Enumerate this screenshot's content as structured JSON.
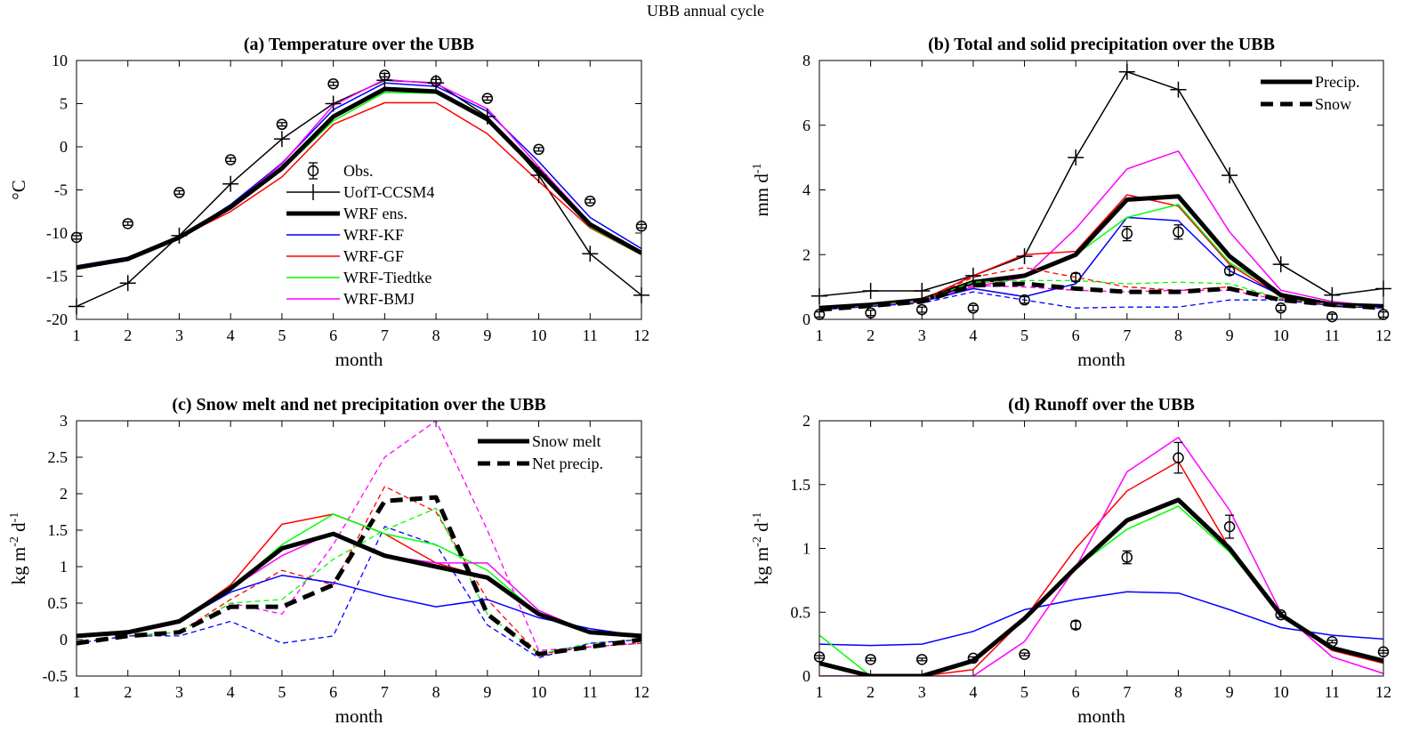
{
  "figure_title": "UBB annual cycle",
  "colors": {
    "obs": "#000000",
    "ccsm": "#000000",
    "ens": "#000000",
    "kf": "#0000ff",
    "gf": "#ff0000",
    "tiedtke": "#00ff00",
    "bmj": "#ff00ff"
  },
  "chart_data": [
    {
      "id": "a",
      "type": "line",
      "title": "(a) Temperature over the UBB",
      "xlabel": "month",
      "ylabel": "°C",
      "xlim": [
        1,
        12
      ],
      "ylim": [
        -20,
        10
      ],
      "xticks": [
        1,
        2,
        3,
        4,
        5,
        6,
        7,
        8,
        9,
        10,
        11,
        12
      ],
      "yticks": [
        -20,
        -15,
        -10,
        -5,
        0,
        5,
        10
      ],
      "legend_position": "center",
      "legend": [
        "Obs.",
        "UofT-CCSM4",
        "WRF ens.",
        "WRF-KF",
        "WRF-GF",
        "WRF-Tiedtke",
        "WRF-BMJ"
      ],
      "obs": {
        "name": "Obs.",
        "values": [
          -10.5,
          -8.9,
          -5.3,
          -1.5,
          2.6,
          7.3,
          8.3,
          7.6,
          5.6,
          -0.3,
          -6.3,
          -9.2
        ],
        "err": [
          0.2,
          0.2,
          0.2,
          0.2,
          0.2,
          0.2,
          0.2,
          0.2,
          0.2,
          0.2,
          0.2,
          0.2
        ]
      },
      "series": [
        {
          "name": "UofT-CCSM4",
          "color": "ccsm",
          "width": 1.5,
          "dash": "",
          "marker": "plus",
          "values": [
            -18.5,
            -15.8,
            -10.3,
            -4.3,
            0.9,
            5.0,
            7.7,
            7.4,
            3.5,
            -3.3,
            -12.4,
            -17.2
          ]
        },
        {
          "name": "WRF-KF",
          "color": "kf",
          "width": 1.5,
          "dash": "",
          "values": [
            -13.8,
            -12.8,
            -10.5,
            -6.7,
            -1.9,
            4.3,
            7.4,
            7.0,
            4.1,
            -1.7,
            -8.2,
            -11.8
          ]
        },
        {
          "name": "WRF-GF",
          "color": "gf",
          "width": 1.5,
          "dash": "",
          "values": [
            -14.2,
            -13.1,
            -10.5,
            -7.5,
            -3.5,
            2.6,
            5.1,
            5.1,
            1.5,
            -4.0,
            -9.4,
            -12.5
          ]
        },
        {
          "name": "WRF-Tiedtke",
          "color": "tiedtke",
          "width": 1.5,
          "dash": "",
          "values": [
            -13.9,
            -12.9,
            -10.6,
            -7.0,
            -2.7,
            3.0,
            6.3,
            6.2,
            3.0,
            -3.0,
            -9.3,
            -12.5
          ]
        },
        {
          "name": "WRF-BMJ",
          "color": "bmj",
          "width": 1.5,
          "dash": "",
          "values": [
            -14.0,
            -13.0,
            -10.4,
            -6.9,
            -2.0,
            4.8,
            7.8,
            7.3,
            4.4,
            -2.3,
            -8.8,
            -12.2
          ]
        },
        {
          "name": "WRF ens.",
          "color": "ens",
          "width": 5,
          "dash": "",
          "values": [
            -14.0,
            -13.0,
            -10.5,
            -7.0,
            -2.5,
            3.5,
            6.7,
            6.4,
            3.2,
            -2.8,
            -9.0,
            -12.3
          ]
        }
      ]
    },
    {
      "id": "b",
      "type": "line",
      "title": "(b) Total and solid precipitation over the UBB",
      "xlabel": "month",
      "ylabel": "mm d",
      "ylabel_sup": "-1",
      "xlim": [
        1,
        12
      ],
      "ylim": [
        0,
        8
      ],
      "xticks": [
        1,
        2,
        3,
        4,
        5,
        6,
        7,
        8,
        9,
        10,
        11,
        12
      ],
      "yticks": [
        0,
        2,
        4,
        6,
        8
      ],
      "legend_position": "top-right",
      "legend": [
        "Precip.",
        "Snow"
      ],
      "obs": {
        "name": "Obs.",
        "values": [
          0.15,
          0.2,
          0.3,
          0.35,
          0.6,
          1.3,
          2.65,
          2.7,
          1.5,
          0.35,
          0.08,
          0.15
        ],
        "err": [
          0.08,
          0.08,
          0.08,
          0.08,
          0.1,
          0.12,
          0.22,
          0.22,
          0.12,
          0.08,
          0.08,
          0.08
        ]
      },
      "series": [
        {
          "name": "UofT-CCSM4",
          "color": "ccsm",
          "width": 1.5,
          "dash": "",
          "marker": "plus",
          "values": [
            0.72,
            0.88,
            0.88,
            1.35,
            1.95,
            5.0,
            7.65,
            7.1,
            4.45,
            1.7,
            0.75,
            0.95
          ]
        },
        {
          "name": "WRF-BMJ",
          "color": "bmj",
          "width": 1.5,
          "dash": "",
          "values": [
            0.35,
            0.45,
            0.6,
            1.0,
            1.3,
            2.8,
            4.65,
            5.2,
            2.7,
            0.9,
            0.55,
            0.4
          ]
        },
        {
          "name": "WRF-GF",
          "color": "gf",
          "width": 1.5,
          "dash": "",
          "values": [
            0.35,
            0.45,
            0.6,
            1.35,
            2.0,
            2.1,
            3.85,
            3.5,
            1.7,
            0.7,
            0.45,
            0.4
          ]
        },
        {
          "name": "WRF-KF",
          "color": "kf",
          "width": 1.5,
          "dash": "",
          "values": [
            0.35,
            0.45,
            0.55,
            0.95,
            0.7,
            1.1,
            3.15,
            3.05,
            1.5,
            0.75,
            0.5,
            0.4
          ]
        },
        {
          "name": "WRF-Tiedtke",
          "color": "tiedtke",
          "width": 1.5,
          "dash": "",
          "values": [
            0.35,
            0.48,
            0.6,
            1.2,
            1.35,
            2.0,
            3.15,
            3.55,
            1.75,
            0.8,
            0.5,
            0.45
          ]
        },
        {
          "name": "WRF ens. Precip.",
          "color": "ens",
          "width": 5,
          "dash": "",
          "values": [
            0.35,
            0.45,
            0.6,
            1.15,
            1.35,
            2.0,
            3.7,
            3.8,
            1.95,
            0.75,
            0.45,
            0.4
          ]
        },
        {
          "name": "WRF-GF Snow",
          "color": "gf",
          "width": 1.3,
          "dash": "6,4",
          "values": [
            0.3,
            0.42,
            0.6,
            1.3,
            1.6,
            1.3,
            1.0,
            0.9,
            1.0,
            0.65,
            0.45,
            0.35
          ]
        },
        {
          "name": "WRF-Tiedtke Snow",
          "color": "tiedtke",
          "width": 1.3,
          "dash": "6,4",
          "values": [
            0.3,
            0.42,
            0.58,
            1.15,
            1.2,
            1.2,
            1.1,
            1.15,
            1.1,
            0.65,
            0.45,
            0.35
          ]
        },
        {
          "name": "WRF-BMJ Snow",
          "color": "bmj",
          "width": 1.3,
          "dash": "6,4",
          "values": [
            0.3,
            0.4,
            0.55,
            1.05,
            1.0,
            0.9,
            0.85,
            0.9,
            0.9,
            0.6,
            0.45,
            0.35
          ]
        },
        {
          "name": "WRF-KF Snow",
          "color": "kf",
          "width": 1.3,
          "dash": "6,4",
          "values": [
            0.3,
            0.4,
            0.5,
            0.85,
            0.6,
            0.35,
            0.38,
            0.38,
            0.6,
            0.6,
            0.42,
            0.35
          ]
        },
        {
          "name": "WRF ens. Snow",
          "color": "ens",
          "width": 5,
          "dash": "14,8",
          "values": [
            0.3,
            0.42,
            0.55,
            1.05,
            1.1,
            0.95,
            0.85,
            0.85,
            0.95,
            0.6,
            0.45,
            0.35
          ]
        }
      ]
    },
    {
      "id": "c",
      "type": "line",
      "title": "(c) Snow melt and net precipitation over the UBB",
      "xlabel": "month",
      "ylabel": "kg m",
      "ylabel_sup": "-2",
      "ylabel_mid": " d",
      "ylabel_sup2": "-1",
      "xlim": [
        1,
        12
      ],
      "ylim": [
        -0.5,
        3
      ],
      "xticks": [
        1,
        2,
        3,
        4,
        5,
        6,
        7,
        8,
        9,
        10,
        11,
        12
      ],
      "yticks": [
        -0.5,
        0,
        0.5,
        1,
        1.5,
        2,
        2.5,
        3
      ],
      "legend_position": "top-right",
      "legend": [
        "Snow melt",
        "Net precip."
      ],
      "series": [
        {
          "name": "WRF-BMJ Net",
          "color": "bmj",
          "width": 1.3,
          "dash": "6,4",
          "values": [
            -0.05,
            0.05,
            0.1,
            0.5,
            0.35,
            1.3,
            2.5,
            3.0,
            1.5,
            -0.15,
            -0.1,
            -0.05
          ]
        },
        {
          "name": "WRF-GF Net",
          "color": "gf",
          "width": 1.3,
          "dash": "6,4",
          "values": [
            -0.05,
            0.05,
            0.1,
            0.55,
            0.95,
            0.75,
            2.1,
            1.75,
            0.55,
            -0.2,
            -0.1,
            -0.05
          ]
        },
        {
          "name": "WRF-Tiedtke Net",
          "color": "tiedtke",
          "width": 1.3,
          "dash": "6,4",
          "values": [
            -0.05,
            0.05,
            0.1,
            0.5,
            0.55,
            1.1,
            1.5,
            1.8,
            0.35,
            -0.2,
            -0.05,
            0.0
          ]
        },
        {
          "name": "WRF-KF Net",
          "color": "kf",
          "width": 1.3,
          "dash": "6,4",
          "values": [
            -0.05,
            0.05,
            0.05,
            0.25,
            -0.05,
            0.05,
            1.55,
            1.3,
            0.2,
            -0.25,
            -0.05,
            0.0
          ]
        },
        {
          "name": "WRF ens. Net precip.",
          "color": "ens",
          "width": 5,
          "dash": "14,8",
          "values": [
            -0.05,
            0.05,
            0.1,
            0.45,
            0.45,
            0.75,
            1.9,
            1.95,
            0.35,
            -0.2,
            -0.1,
            0.0
          ]
        },
        {
          "name": "WRF-KF Melt",
          "color": "kf",
          "width": 1.5,
          "dash": "",
          "values": [
            0.05,
            0.1,
            0.25,
            0.65,
            0.88,
            0.78,
            0.6,
            0.45,
            0.55,
            0.3,
            0.15,
            0.05
          ]
        },
        {
          "name": "WRF-GF Melt",
          "color": "gf",
          "width": 1.5,
          "dash": "",
          "values": [
            0.05,
            0.1,
            0.25,
            0.75,
            1.58,
            1.72,
            1.45,
            1.05,
            0.85,
            0.35,
            0.1,
            0.05
          ]
        },
        {
          "name": "WRF-Tiedtke Melt",
          "color": "tiedtke",
          "width": 1.5,
          "dash": "",
          "values": [
            0.05,
            0.1,
            0.25,
            0.7,
            1.3,
            1.72,
            1.45,
            1.3,
            0.95,
            0.35,
            0.1,
            0.05
          ]
        },
        {
          "name": "WRF-BMJ Melt",
          "color": "bmj",
          "width": 1.5,
          "dash": "",
          "values": [
            0.05,
            0.1,
            0.25,
            0.7,
            1.15,
            1.47,
            1.15,
            1.05,
            1.05,
            0.4,
            0.1,
            0.05
          ]
        },
        {
          "name": "WRF ens. Snow melt",
          "color": "ens",
          "width": 5,
          "dash": "",
          "values": [
            0.05,
            0.1,
            0.25,
            0.7,
            1.25,
            1.45,
            1.15,
            1.0,
            0.85,
            0.35,
            0.1,
            0.05
          ]
        }
      ]
    },
    {
      "id": "d",
      "type": "line",
      "title": "(d) Runoff over the UBB",
      "xlabel": "month",
      "ylabel": "kg m",
      "ylabel_sup": "-2",
      "ylabel_mid": " d",
      "ylabel_sup2": "-1",
      "xlim": [
        1,
        12
      ],
      "ylim": [
        0,
        2
      ],
      "xticks": [
        1,
        2,
        3,
        4,
        5,
        6,
        7,
        8,
        9,
        10,
        11,
        12
      ],
      "yticks": [
        0,
        0.5,
        1,
        1.5,
        2
      ],
      "obs": {
        "name": "Obs.",
        "values": [
          0.15,
          0.13,
          0.13,
          0.14,
          0.17,
          0.4,
          0.93,
          1.71,
          1.17,
          0.48,
          0.27,
          0.19
        ],
        "err": [
          0.01,
          0.01,
          0.01,
          0.01,
          0.01,
          0.03,
          0.05,
          0.12,
          0.09,
          0.02,
          0.01,
          0.01
        ]
      },
      "series": [
        {
          "name": "WRF-KF",
          "color": "kf",
          "width": 1.5,
          "dash": "",
          "values": [
            0.25,
            0.24,
            0.25,
            0.35,
            0.52,
            0.6,
            0.66,
            0.65,
            0.52,
            0.38,
            0.32,
            0.29
          ]
        },
        {
          "name": "WRF-GF",
          "color": "gf",
          "width": 1.5,
          "dash": "",
          "values": [
            0.0,
            0.0,
            0.0,
            0.05,
            0.45,
            1.0,
            1.45,
            1.68,
            1.0,
            0.48,
            0.2,
            0.1
          ]
        },
        {
          "name": "WRF-BMJ",
          "color": "bmj",
          "width": 1.5,
          "dash": "",
          "values": [
            0.0,
            0.0,
            0.0,
            0.0,
            0.27,
            0.85,
            1.6,
            1.87,
            1.3,
            0.5,
            0.15,
            0.02
          ]
        },
        {
          "name": "WRF-Tiedtke",
          "color": "tiedtke",
          "width": 1.5,
          "dash": "",
          "values": [
            0.32,
            0.0,
            0.0,
            0.12,
            0.45,
            0.85,
            1.15,
            1.33,
            0.97,
            0.48,
            0.22,
            0.12
          ]
        },
        {
          "name": "WRF ens.",
          "color": "ens",
          "width": 5,
          "dash": "",
          "values": [
            0.1,
            0.0,
            0.0,
            0.12,
            0.45,
            0.85,
            1.22,
            1.38,
            1.0,
            0.48,
            0.22,
            0.12
          ]
        }
      ]
    }
  ]
}
